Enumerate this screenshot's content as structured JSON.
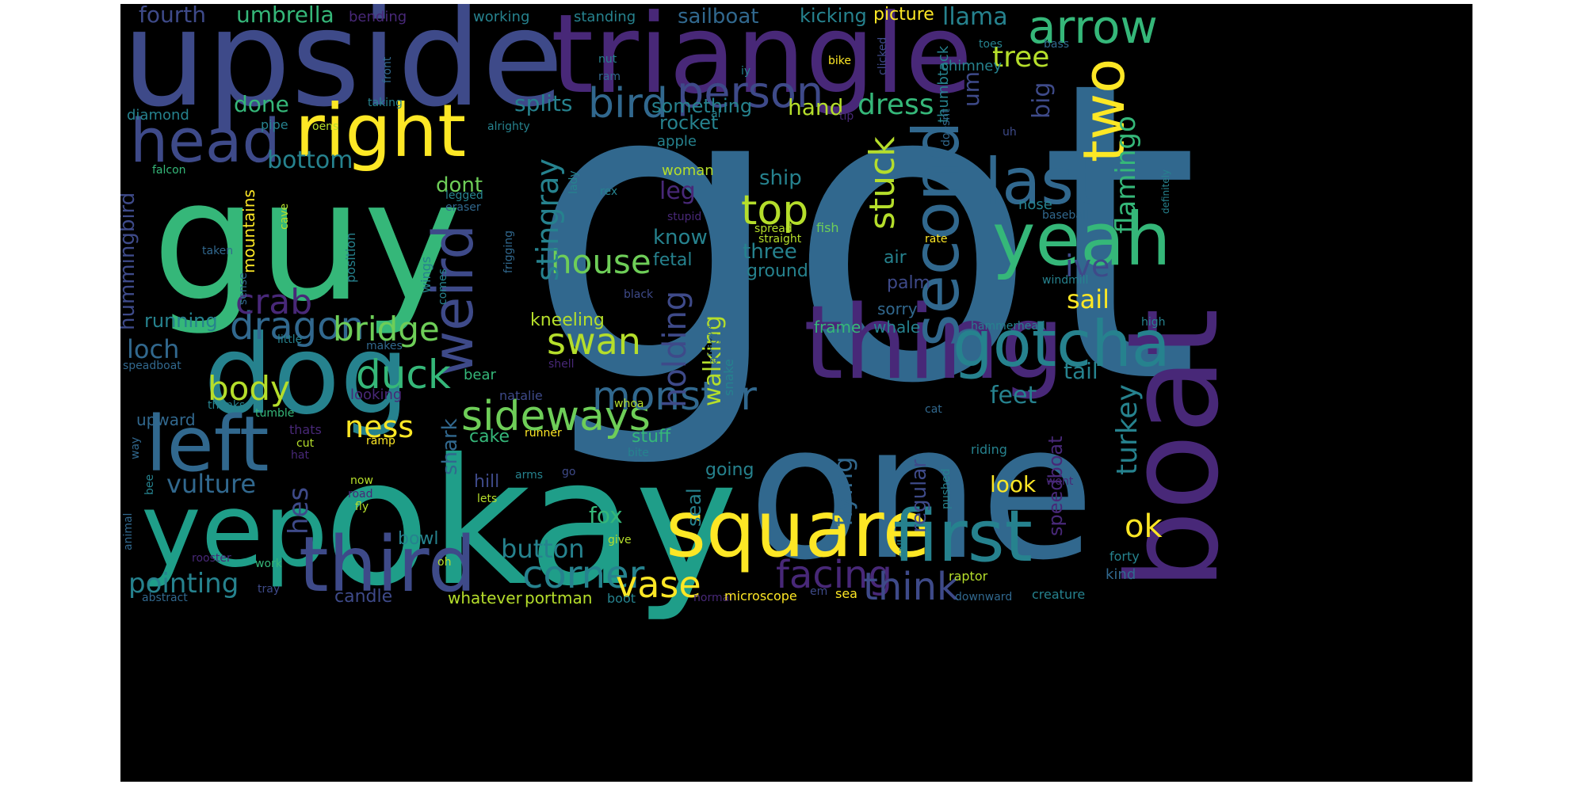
{
  "words": [
    {
      "text": "got",
      "color": "#31688e"
    },
    {
      "text": "one",
      "color": "#31688e"
    },
    {
      "text": "okay",
      "color": "#1f9e89"
    },
    {
      "text": "upside",
      "color": "#3e4a89"
    },
    {
      "text": "triangle",
      "color": "#482878"
    },
    {
      "text": "guy",
      "color": "#35b779"
    },
    {
      "text": "thing",
      "color": "#482878"
    },
    {
      "text": "dog",
      "color": "#26828e"
    },
    {
      "text": "boat",
      "color": "#482878"
    },
    {
      "text": "yep",
      "color": "#1f9e89"
    },
    {
      "text": "square",
      "color": "#fde725"
    },
    {
      "text": "right",
      "color": "#fde725"
    },
    {
      "text": "gotcha",
      "color": "#26828e"
    },
    {
      "text": "yeah",
      "color": "#35b779"
    },
    {
      "text": "left",
      "color": "#31688e"
    },
    {
      "text": "third",
      "color": "#3e4a89"
    },
    {
      "text": "first",
      "color": "#26828e"
    },
    {
      "text": "head",
      "color": "#3e4a89"
    },
    {
      "text": "second",
      "color": "#31688e"
    },
    {
      "text": "last",
      "color": "#31688e"
    },
    {
      "text": "two",
      "color": "#fde725"
    },
    {
      "text": "weird",
      "color": "#3e4a89"
    },
    {
      "text": "arrow",
      "color": "#35b779"
    },
    {
      "text": "person",
      "color": "#3e4a89"
    },
    {
      "text": "bird",
      "color": "#31688e"
    },
    {
      "text": "top",
      "color": "#b5de2b"
    },
    {
      "text": "sideways",
      "color": "#6ece58"
    },
    {
      "text": "monster",
      "color": "#31688e"
    },
    {
      "text": "duck",
      "color": "#35b779"
    },
    {
      "text": "dragon",
      "color": "#31688e"
    },
    {
      "text": "facing",
      "color": "#482878"
    },
    {
      "text": "think",
      "color": "#3e4a89"
    },
    {
      "text": "corner",
      "color": "#26828e"
    },
    {
      "text": "vase",
      "color": "#fde725"
    },
    {
      "text": "swan",
      "color": "#b5de2b"
    },
    {
      "text": "crab",
      "color": "#482878"
    },
    {
      "text": "stuck",
      "color": "#b5de2b"
    },
    {
      "text": "body",
      "color": "#b5de2b"
    },
    {
      "text": "house",
      "color": "#6ece58"
    },
    {
      "text": "bridge",
      "color": "#6ece58"
    },
    {
      "text": "holding",
      "color": "#3e4a89"
    },
    {
      "text": "stingray",
      "color": "#26828e"
    },
    {
      "text": "flamingo",
      "color": "#35b779"
    },
    {
      "text": "turkey",
      "color": "#26828e"
    },
    {
      "text": "tree",
      "color": "#b5de2b"
    },
    {
      "text": "dress",
      "color": "#35b779"
    },
    {
      "text": "ive",
      "color": "#3e4a89"
    },
    {
      "text": "ok",
      "color": "#fde725"
    },
    {
      "text": "sail",
      "color": "#fde725"
    },
    {
      "text": "ness",
      "color": "#fde725"
    },
    {
      "text": "tail",
      "color": "#26828e"
    },
    {
      "text": "loch",
      "color": "#31688e"
    },
    {
      "text": "button",
      "color": "#26828e"
    },
    {
      "text": "pointing",
      "color": "#26828e"
    },
    {
      "text": "vulture",
      "color": "#31688e"
    },
    {
      "text": "feet",
      "color": "#26828e"
    },
    {
      "text": "big",
      "color": "#3e4a89"
    },
    {
      "text": "hes",
      "color": "#3e4a89"
    },
    {
      "text": "walking",
      "color": "#b5de2b"
    },
    {
      "text": "flying",
      "color": "#31688e"
    },
    {
      "text": "look",
      "color": "#fde725"
    },
    {
      "text": "fox",
      "color": "#35b779"
    },
    {
      "text": "bottom",
      "color": "#26828e"
    },
    {
      "text": "splits",
      "color": "#26828e"
    },
    {
      "text": "done",
      "color": "#35b779"
    },
    {
      "text": "umbrella",
      "color": "#35b779"
    },
    {
      "text": "fourth",
      "color": "#3e4a89"
    },
    {
      "text": "llama",
      "color": "#26828e"
    },
    {
      "text": "shark",
      "color": "#31688e"
    },
    {
      "text": "dont",
      "color": "#6ece58"
    },
    {
      "text": "rocket",
      "color": "#26828e"
    },
    {
      "text": "something",
      "color": "#26828e"
    },
    {
      "text": "hand",
      "color": "#b5de2b"
    },
    {
      "text": "leg",
      "color": "#482878"
    },
    {
      "text": "know",
      "color": "#26828e"
    },
    {
      "text": "three",
      "color": "#26828e"
    },
    {
      "text": "ship",
      "color": "#26828e"
    },
    {
      "text": "kneeling",
      "color": "#b5de2b"
    },
    {
      "text": "sailboat",
      "color": "#31688e"
    },
    {
      "text": "kicking",
      "color": "#26828e"
    },
    {
      "text": "picture",
      "color": "#fde725"
    },
    {
      "text": "running",
      "color": "#26828e"
    },
    {
      "text": "hummingbird",
      "color": "#3e4a89"
    },
    {
      "text": "mountains",
      "color": "#fde725"
    },
    {
      "text": "um",
      "color": "#3e4a89"
    },
    {
      "text": "speedboat",
      "color": "#482878"
    },
    {
      "text": "regular",
      "color": "#3e4a89"
    },
    {
      "text": "seal",
      "color": "#26828e"
    },
    {
      "text": "stuff",
      "color": "#35b779"
    },
    {
      "text": "cake",
      "color": "#35b779"
    },
    {
      "text": "candle",
      "color": "#3e4a89"
    },
    {
      "text": "whatever",
      "color": "#b5de2b"
    },
    {
      "text": "portman",
      "color": "#b5de2b"
    },
    {
      "text": "frame",
      "color": "#35b779"
    },
    {
      "text": "whale",
      "color": "#26828e"
    },
    {
      "text": "sorry",
      "color": "#31688e"
    },
    {
      "text": "palm",
      "color": "#3e4a89"
    },
    {
      "text": "air",
      "color": "#26828e"
    },
    {
      "text": "fetal",
      "color": "#26828e"
    },
    {
      "text": "ground",
      "color": "#26828e"
    },
    {
      "text": "going",
      "color": "#26828e"
    },
    {
      "text": "hill",
      "color": "#3e4a89"
    },
    {
      "text": "upward",
      "color": "#31688e"
    },
    {
      "text": "bowl",
      "color": "#26828e"
    },
    {
      "text": "woman",
      "color": "#b5de2b"
    },
    {
      "text": "apple",
      "color": "#26828e"
    },
    {
      "text": "working",
      "color": "#26828e"
    },
    {
      "text": "standing",
      "color": "#26828e"
    },
    {
      "text": "bending",
      "color": "#482878"
    },
    {
      "text": "chimney",
      "color": "#26828e"
    },
    {
      "text": "thumbtack",
      "color": "#26828e"
    },
    {
      "text": "diamond",
      "color": "#26828e"
    },
    {
      "text": "nose",
      "color": "#26828e"
    },
    {
      "text": "position",
      "color": "#26828e"
    },
    {
      "text": "rate",
      "color": "#fde725"
    },
    {
      "text": "straight",
      "color": "#b5de2b"
    },
    {
      "text": "fish",
      "color": "#6ece58"
    },
    {
      "text": "spread",
      "color": "#b5de2b"
    },
    {
      "text": "wings",
      "color": "#26828e"
    },
    {
      "text": "looking",
      "color": "#482878"
    },
    {
      "text": "bear",
      "color": "#35b779"
    },
    {
      "text": "natalie",
      "color": "#3e4a89"
    },
    {
      "text": "snake",
      "color": "#26828e"
    },
    {
      "text": "alright",
      "color": "#31688e"
    },
    {
      "text": "raptor",
      "color": "#b5de2b"
    },
    {
      "text": "kind",
      "color": "#31688e"
    },
    {
      "text": "forty",
      "color": "#26828e"
    },
    {
      "text": "creature",
      "color": "#26828e"
    },
    {
      "text": "downward",
      "color": "#31688e"
    },
    {
      "text": "hammerhead",
      "color": "#26828e"
    },
    {
      "text": "windmill",
      "color": "#26828e"
    },
    {
      "text": "baseball",
      "color": "#31688e"
    },
    {
      "text": "definitely",
      "color": "#26828e"
    },
    {
      "text": "high",
      "color": "#26828e"
    },
    {
      "text": "riding",
      "color": "#26828e"
    },
    {
      "text": "wont",
      "color": "#482878"
    },
    {
      "text": "pushed",
      "color": "#26828e"
    },
    {
      "text": "sea",
      "color": "#fde725"
    },
    {
      "text": "normal",
      "color": "#482878"
    },
    {
      "text": "microscope",
      "color": "#fde725"
    },
    {
      "text": "boot",
      "color": "#26828e"
    },
    {
      "text": "em",
      "color": "#3e4a89"
    },
    {
      "text": "call",
      "color": "#26828e"
    },
    {
      "text": "cat",
      "color": "#31688e"
    },
    {
      "text": "give",
      "color": "#b5de2b"
    },
    {
      "text": "oh",
      "color": "#b5de2b"
    },
    {
      "text": "work",
      "color": "#35b779"
    },
    {
      "text": "tray",
      "color": "#3e4a89"
    },
    {
      "text": "abstract",
      "color": "#31688e"
    },
    {
      "text": "rooster",
      "color": "#482878"
    },
    {
      "text": "animal",
      "color": "#31688e"
    },
    {
      "text": "bee",
      "color": "#26828e"
    },
    {
      "text": "way",
      "color": "#31688e"
    },
    {
      "text": "hat",
      "color": "#482878"
    },
    {
      "text": "cut",
      "color": "#b5de2b"
    },
    {
      "text": "thats",
      "color": "#482878"
    },
    {
      "text": "tumble",
      "color": "#35b779"
    },
    {
      "text": "thanks",
      "color": "#26828e"
    },
    {
      "text": "speadboat",
      "color": "#31688e"
    },
    {
      "text": "little",
      "color": "#26828e"
    },
    {
      "text": "makes",
      "color": "#31688e"
    },
    {
      "text": "sense",
      "color": "#31688e"
    },
    {
      "text": "taken",
      "color": "#31688e"
    },
    {
      "text": "falcon",
      "color": "#35b779"
    },
    {
      "text": "cave",
      "color": "#b5de2b"
    },
    {
      "text": "legged",
      "color": "#26828e"
    },
    {
      "text": "eraser",
      "color": "#31688e"
    },
    {
      "text": "frigging",
      "color": "#31688e"
    },
    {
      "text": "comes",
      "color": "#26828e"
    },
    {
      "text": "black",
      "color": "#3e4a89"
    },
    {
      "text": "stupid",
      "color": "#482878"
    },
    {
      "text": "lady",
      "color": "#26828e"
    },
    {
      "text": "rex",
      "color": "#26828e"
    },
    {
      "text": "oens",
      "color": "#b5de2b"
    },
    {
      "text": "pipe",
      "color": "#26828e"
    },
    {
      "text": "alrighty",
      "color": "#26828e"
    },
    {
      "text": "taking",
      "color": "#26828e"
    },
    {
      "text": "front",
      "color": "#31688e"
    },
    {
      "text": "nut",
      "color": "#26828e"
    },
    {
      "text": "ram",
      "color": "#31688e"
    },
    {
      "text": "al",
      "color": "#26828e"
    },
    {
      "text": "iy",
      "color": "#26828e"
    },
    {
      "text": "bike",
      "color": "#fde725"
    },
    {
      "text": "clicked",
      "color": "#3e4a89"
    },
    {
      "text": "toes",
      "color": "#26828e"
    },
    {
      "text": "bass",
      "color": "#31688e"
    },
    {
      "text": "doesnt",
      "color": "#31688e"
    },
    {
      "text": "tip",
      "color": "#482878"
    },
    {
      "text": "uh",
      "color": "#3e4a89"
    },
    {
      "text": "shell",
      "color": "#482878"
    },
    {
      "text": "whoa",
      "color": "#b5de2b"
    },
    {
      "text": "runner",
      "color": "#fde725"
    },
    {
      "text": "ramp",
      "color": "#fde725"
    },
    {
      "text": "bite",
      "color": "#26828e"
    },
    {
      "text": "now",
      "color": "#b5de2b"
    },
    {
      "text": "road",
      "color": "#482878"
    },
    {
      "text": "fly",
      "color": "#b5de2b"
    },
    {
      "text": "lets",
      "color": "#b5de2b"
    },
    {
      "text": "arms",
      "color": "#26828e"
    },
    {
      "text": "go",
      "color": "#3e4a89"
    }
  ]
}
